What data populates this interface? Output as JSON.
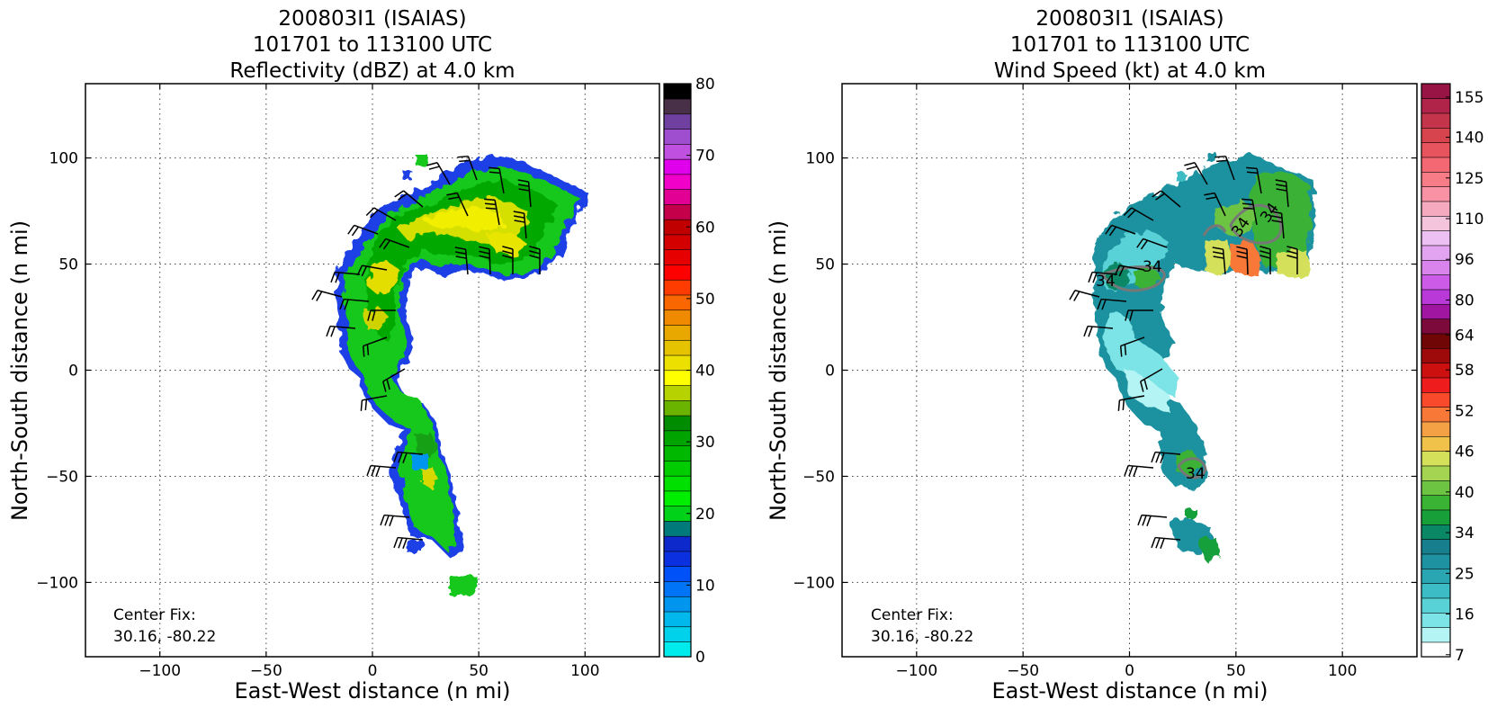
{
  "panels": [
    {
      "id": "reflectivity",
      "title_line1": "200803I1 (ISAIAS)",
      "title_line2": "101701 to 113100 UTC",
      "title_line3": "Reflectivity (dBZ) at 4.0 km",
      "xlabel": "East-West distance (n mi)",
      "ylabel": "North-South distance (n mi)",
      "center_fix_label": "Center Fix:",
      "center_fix_value": "30.16, -80.22",
      "xticks": [
        "−100",
        "−50",
        "0",
        "50",
        "100"
      ],
      "yticks": [
        "100",
        "50",
        "0",
        "−50",
        "−100"
      ],
      "colorbar_ticks": [
        "80",
        "70",
        "60",
        "50",
        "40",
        "30",
        "20",
        "10",
        "0"
      ],
      "colorbar_colors": [
        "#00ecec",
        "#00d2ec",
        "#00b8ec",
        "#0096f0",
        "#0074f6",
        "#0052f8",
        "#0a30e0",
        "#0d29cc",
        "#007a7a",
        "#00d21a",
        "#00ee00",
        "#00e000",
        "#00cc00",
        "#00b800",
        "#00a400",
        "#008c00",
        "#6ab400",
        "#b6d200",
        "#ffff00",
        "#ece000",
        "#e6c300",
        "#e8a800",
        "#f08a00",
        "#fa6600",
        "#ff3c00",
        "#ff0000",
        "#e60000",
        "#d40000",
        "#c00000",
        "#c4004a",
        "#e20094",
        "#f000c8",
        "#e000ec",
        "#c050e0",
        "#a04ed0",
        "#7040a0",
        "#483048",
        "#000000"
      ]
    },
    {
      "id": "windspeed",
      "title_line1": "200803I1 (ISAIAS)",
      "title_line2": "101701 to 113100 UTC",
      "title_line3": "Wind Speed (kt) at 4.0 km",
      "xlabel": "East-West distance (n mi)",
      "ylabel": "North-South distance (n mi)",
      "center_fix_label": "Center Fix:",
      "center_fix_value": "30.16, -80.22",
      "xticks": [
        "−100",
        "−50",
        "0",
        "50",
        "100"
      ],
      "yticks": [
        "100",
        "50",
        "0",
        "−50",
        "−100"
      ],
      "contour_labels": [
        "34",
        "34",
        "34",
        "34",
        "34"
      ],
      "colorbar_ticks": [
        "155",
        "140",
        "125",
        "110",
        "96",
        "80",
        "64",
        "58",
        "52",
        "46",
        "40",
        "34",
        "25",
        "16",
        "7"
      ],
      "colorbar_colors": [
        "#ffffff",
        "#b4f4f4",
        "#7ce4e6",
        "#58d2d6",
        "#3cbcc4",
        "#2aa6b2",
        "#1e92a0",
        "#167e8c",
        "#0a8866",
        "#17a03a",
        "#3ab234",
        "#6cc442",
        "#a4d452",
        "#d4e05a",
        "#f0c24a",
        "#f4a044",
        "#f87838",
        "#fa4a2c",
        "#ee1c1c",
        "#cc1010",
        "#9e0a0a",
        "#700606",
        "#7c0a3a",
        "#a016a0",
        "#b838d8",
        "#cc5ce8",
        "#d884ec",
        "#e2a4f0",
        "#ecc0f2",
        "#f4c4dc",
        "#f6aac0",
        "#f892a4",
        "#f87c88",
        "#f46874",
        "#e8545e",
        "#d8444e",
        "#c4344a",
        "#b0244a",
        "#981444"
      ]
    }
  ],
  "chart_data": [
    {
      "type": "heatmap",
      "title": "200803I1 (ISAIAS) 101701 to 113100 UTC Reflectivity (dBZ) at 4.0 km",
      "xlabel": "East-West distance (n mi)",
      "ylabel": "North-South distance (n mi)",
      "xlim": [
        -135,
        135
      ],
      "ylim": [
        -135,
        135
      ],
      "grid": true,
      "colorbar": {
        "label_values": [
          0,
          10,
          20,
          30,
          40,
          50,
          60,
          70,
          80
        ],
        "range": [
          0,
          80
        ]
      },
      "center_fix": [
        30.16,
        -80.22
      ]
    },
    {
      "type": "heatmap",
      "title": "200803I1 (ISAIAS) 101701 to 113100 UTC Wind Speed (kt) at 4.0 km",
      "xlabel": "East-West distance (n mi)",
      "ylabel": "North-South distance (n mi)",
      "xlim": [
        -135,
        135
      ],
      "ylim": [
        -135,
        135
      ],
      "grid": true,
      "colorbar": {
        "label_values": [
          7,
          16,
          25,
          34,
          40,
          46,
          52,
          58,
          64,
          80,
          96,
          110,
          125,
          140,
          155
        ]
      },
      "contour_level": 34,
      "center_fix": [
        30.16,
        -80.22
      ]
    }
  ]
}
